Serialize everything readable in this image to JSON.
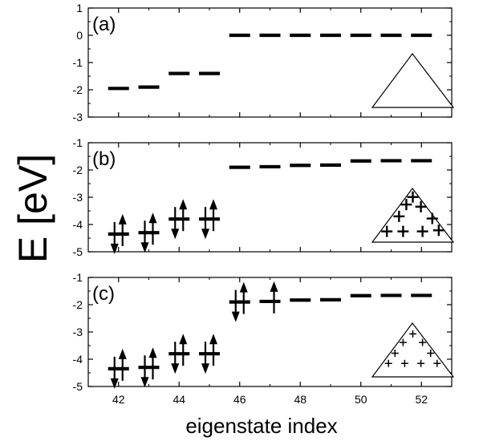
{
  "chart_data": {
    "type": "scatter",
    "ylabel": "E [eV]",
    "xlabel": "eigenstate index",
    "x_ticks": [
      "42",
      "44",
      "46",
      "48",
      "50",
      "52"
    ],
    "panels": [
      {
        "tag": "(a)",
        "ylim": [
          -3,
          1
        ],
        "y_ticks": [
          "1",
          "0",
          "-1",
          "-2",
          "-3"
        ],
        "levels": [
          {
            "index": 42,
            "energy": -1.95
          },
          {
            "index": 43,
            "energy": -1.9
          },
          {
            "index": 44,
            "energy": -1.4
          },
          {
            "index": 45,
            "energy": -1.4
          },
          {
            "index": 46,
            "energy": 0.0
          },
          {
            "index": 47,
            "energy": 0.0
          },
          {
            "index": 48,
            "energy": 0.0
          },
          {
            "index": 49,
            "energy": 0.0
          },
          {
            "index": 50,
            "energy": 0.0
          },
          {
            "index": 51,
            "energy": 0.0
          },
          {
            "index": 52,
            "energy": 0.0
          }
        ],
        "inset": {
          "shape": "triangle",
          "marker": "none"
        }
      },
      {
        "tag": "(b)",
        "ylim": [
          -5,
          -1
        ],
        "y_ticks": [
          "-1",
          "-2",
          "-3",
          "-4",
          "-5"
        ],
        "levels": [
          {
            "index": 42,
            "energy": -4.35,
            "electrons": 2
          },
          {
            "index": 43,
            "energy": -4.3,
            "electrons": 2
          },
          {
            "index": 44,
            "energy": -3.8,
            "electrons": 2
          },
          {
            "index": 45,
            "energy": -3.8,
            "electrons": 2
          },
          {
            "index": 46,
            "energy": -1.9
          },
          {
            "index": 47,
            "energy": -1.88
          },
          {
            "index": 48,
            "energy": -1.83
          },
          {
            "index": 49,
            "energy": -1.82
          },
          {
            "index": 50,
            "energy": -1.67
          },
          {
            "index": 51,
            "energy": -1.66
          },
          {
            "index": 52,
            "energy": -1.66
          }
        ],
        "inset": {
          "shape": "triangle",
          "marker": "large-plus"
        }
      },
      {
        "tag": "(c)",
        "ylim": [
          -5,
          -1
        ],
        "y_ticks": [
          "-1",
          "-2",
          "-3",
          "-4",
          "-5"
        ],
        "levels": [
          {
            "index": 42,
            "energy": -4.35,
            "electrons": 2
          },
          {
            "index": 43,
            "energy": -4.3,
            "electrons": 2
          },
          {
            "index": 44,
            "energy": -3.8,
            "electrons": 2
          },
          {
            "index": 45,
            "energy": -3.8,
            "electrons": 2
          },
          {
            "index": 46,
            "energy": -1.9,
            "electrons": 2
          },
          {
            "index": 47,
            "energy": -1.88,
            "electrons": 1
          },
          {
            "index": 48,
            "energy": -1.83
          },
          {
            "index": 49,
            "energy": -1.82
          },
          {
            "index": 50,
            "energy": -1.67
          },
          {
            "index": 51,
            "energy": -1.66
          },
          {
            "index": 52,
            "energy": -1.66
          }
        ],
        "inset": {
          "shape": "triangle",
          "marker": "small-plus"
        }
      }
    ]
  }
}
